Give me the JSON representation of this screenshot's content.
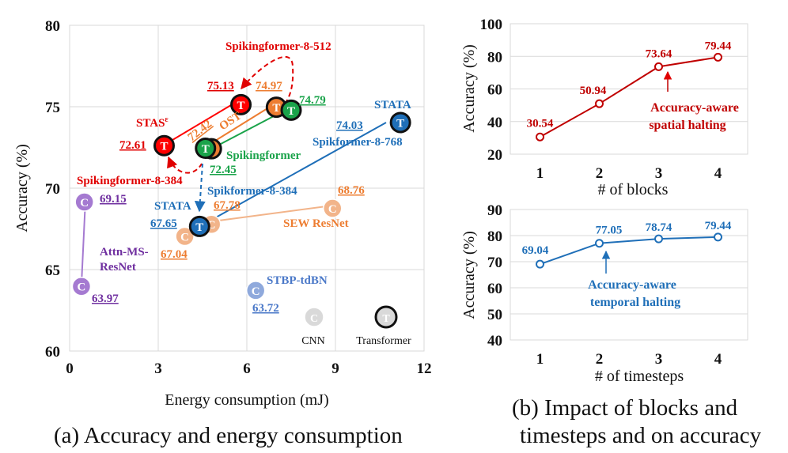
{
  "chart_data": [
    {
      "type": "scatter",
      "title": "",
      "xlabel": "Energy consumption (mJ)",
      "ylabel": "Accuracy (%)",
      "xlim": [
        0,
        12
      ],
      "ylim": [
        60,
        80
      ],
      "xticks": [
        "0",
        "3",
        "6",
        "9",
        "12"
      ],
      "yticks": [
        "60",
        "65",
        "70",
        "75",
        "80"
      ],
      "legend": {
        "position": "bottom-right",
        "entries": [
          {
            "marker": "C",
            "label": "CNN"
          },
          {
            "marker": "T",
            "label": "Transformer"
          }
        ]
      },
      "points": [
        {
          "name": "Attn-MS-ResNet (high)",
          "x": 0.5,
          "y": 69.15,
          "marker": "C",
          "color": "#a57ad1",
          "label": "69.15"
        },
        {
          "name": "Attn-MS-ResNet (low)",
          "x": 0.4,
          "y": 63.97,
          "marker": "C",
          "color": "#a57ad1",
          "label": "63.97"
        },
        {
          "name": "SEW ResNet (low)",
          "x": 3.9,
          "y": 67.04,
          "marker": "C",
          "color": "#f2b48a",
          "label": "67.04"
        },
        {
          "name": "SEW ResNet (mid)",
          "x": 4.8,
          "y": 67.78,
          "marker": "C",
          "color": "#f2b48a",
          "label": "67.78"
        },
        {
          "name": "SEW ResNet (high)",
          "x": 8.9,
          "y": 68.76,
          "marker": "C",
          "color": "#f2b48a",
          "label": "68.76"
        },
        {
          "name": "STBP-tdBN",
          "x": 6.3,
          "y": 63.72,
          "marker": "C",
          "color": "#8fa9dc",
          "label": "63.72"
        },
        {
          "name": "Spikingformer-8-384 + STAS",
          "x": 3.2,
          "y": 72.61,
          "marker": "T",
          "color": "#ff0000",
          "label": "72.61"
        },
        {
          "name": "Spikingformer-8-512 + STAS",
          "x": 5.8,
          "y": 75.13,
          "marker": "T",
          "color": "#ff0000",
          "label": "75.13"
        },
        {
          "name": "Spikingformer-8-384 + OST",
          "x": 4.8,
          "y": 72.42,
          "marker": "T",
          "color": "#ed7d31",
          "label": "72.42"
        },
        {
          "name": "Spikingformer-8-512 + OST",
          "x": 7.0,
          "y": 74.97,
          "marker": "T",
          "color": "#ed7d31",
          "label": "74.97"
        },
        {
          "name": "Spikingformer-8-384",
          "x": 4.6,
          "y": 72.45,
          "marker": "T",
          "color": "#1aa34a",
          "label": "72.45"
        },
        {
          "name": "Spikingformer-8-512",
          "x": 7.5,
          "y": 74.79,
          "marker": "T",
          "color": "#1aa34a",
          "label": "74.79"
        },
        {
          "name": "Spikformer-8-384 + STATA",
          "x": 4.4,
          "y": 67.65,
          "marker": "T",
          "color": "#1f6fb8",
          "label": "67.65"
        },
        {
          "name": "Spikformer-8-768 + STATA",
          "x": 11.2,
          "y": 74.03,
          "marker": "T",
          "color": "#1f6fb8",
          "label": "74.03"
        }
      ],
      "annotations": {
        "stas": "STAS",
        "stas_sup": "ε",
        "ost": "OST",
        "spikingformer_8_512": "Spikingformer-8-512",
        "spikingformer_8_384": "Spikingformer-8-384",
        "spikingformer": "Spikingformer",
        "spikformer_8_384": "Spikformer-8-384",
        "spikformer_8_768": "Spikformer-8-768",
        "stata_left": "STATA",
        "stata_right": "STATA",
        "sew_resnet": "SEW ResNet",
        "stbp_tdbn": "STBP-tdBN",
        "attn_line1": "Attn-MS-",
        "attn_line2": "ResNet"
      }
    },
    {
      "type": "line",
      "title": "",
      "xlabel": "# of blocks",
      "ylabel": "Accuracy (%)",
      "ylim": [
        20,
        100
      ],
      "yticks": [
        "20",
        "40",
        "60",
        "80",
        "100"
      ],
      "categories": [
        "1",
        "2",
        "3",
        "4"
      ],
      "series": [
        {
          "name": "Accuracy-aware spatial halting",
          "color": "#c00000",
          "values": [
            30.54,
            50.94,
            73.64,
            79.44
          ],
          "labels": [
            "30.54",
            "50.94",
            "73.64",
            "79.44"
          ]
        }
      ],
      "annotation_lines": [
        "Accuracy-aware",
        "spatial halting"
      ]
    },
    {
      "type": "line",
      "title": "",
      "xlabel": "# of timesteps",
      "ylabel": "Accuracy (%)",
      "ylim": [
        40,
        90
      ],
      "yticks": [
        "40",
        "50",
        "60",
        "70",
        "80",
        "90"
      ],
      "categories": [
        "1",
        "2",
        "3",
        "4"
      ],
      "series": [
        {
          "name": "Accuracy-aware temporal halting",
          "color": "#1f6fb8",
          "values": [
            69.04,
            77.05,
            78.74,
            79.44
          ],
          "labels": [
            "69.04",
            "77.05",
            "78.74",
            "79.44"
          ]
        }
      ],
      "annotation_lines": [
        "Accuracy-aware",
        "temporal halting"
      ]
    }
  ],
  "captions": {
    "a": "(a) Accuracy and energy consumption",
    "b_line1": "(b) Impact of blocks and",
    "b_line2": "timesteps and on accuracy"
  }
}
